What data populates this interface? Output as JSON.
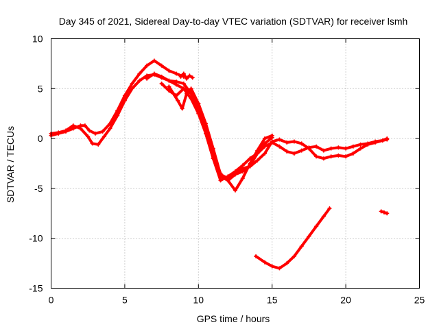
{
  "chart_data": {
    "type": "scatter",
    "title": "Day 345 of 2021, Sidereal Day-to-day VTEC variation (SDTVAR) for receiver lsmh",
    "xlabel": "GPS time / hours",
    "ylabel": "SDTVAR / TECUs",
    "xlim": [
      0,
      25
    ],
    "ylim": [
      -15,
      10
    ],
    "xticks": [
      0,
      5,
      10,
      15,
      20,
      25
    ],
    "yticks": [
      -15,
      -10,
      -5,
      0,
      5,
      10
    ],
    "grid": true,
    "colors": {
      "series": "#ff0000",
      "grid": "#a0a0a0",
      "axis": "#000000"
    },
    "series": [
      {
        "name": "track-1",
        "x": [
          0.0,
          0.5,
          1.0,
          1.5,
          2.0,
          2.3,
          2.6,
          3.0,
          3.5,
          4.0,
          4.5,
          5.0,
          5.5,
          6.0,
          6.5,
          7.0,
          7.5,
          8.0,
          8.5,
          9.0
        ],
        "y": [
          0.3,
          0.5,
          0.7,
          1.0,
          1.3,
          1.3,
          0.8,
          0.5,
          0.7,
          1.5,
          2.8,
          4.3,
          5.5,
          6.5,
          7.3,
          7.8,
          7.3,
          6.8,
          6.5,
          6.2
        ]
      },
      {
        "name": "track-2",
        "x": [
          0.0,
          0.5,
          1.0,
          1.5,
          2.0,
          2.5,
          2.8,
          3.2,
          3.6,
          4.0,
          4.5,
          5.0,
          5.5,
          6.0,
          6.5,
          7.0,
          7.5,
          8.0,
          8.5,
          9.0,
          9.5,
          10.0,
          10.5,
          11.0,
          11.5
        ],
        "y": [
          0.5,
          0.6,
          0.8,
          1.3,
          1.0,
          0.2,
          -0.5,
          -0.6,
          0.2,
          1.0,
          2.3,
          3.8,
          5.0,
          5.8,
          6.3,
          6.4,
          6.1,
          5.8,
          5.7,
          5.5,
          4.5,
          3.0,
          0.8,
          -1.5,
          -3.5
        ]
      },
      {
        "name": "track-3",
        "x": [
          6.5,
          7.0,
          7.5,
          8.0,
          8.5,
          9.0,
          9.5,
          10.0,
          10.5,
          11.0,
          11.5,
          12.0,
          12.5,
          13.0,
          13.5,
          14.0,
          14.5,
          15.0,
          15.5,
          16.0,
          16.5,
          17.0,
          17.5,
          18.0,
          18.5,
          19.0,
          19.5,
          20.0,
          20.5,
          21.0,
          21.5,
          22.0,
          22.5,
          22.8
        ],
        "y": [
          6.0,
          6.5,
          6.2,
          5.8,
          5.4,
          5.0,
          4.0,
          2.5,
          0.5,
          -2.0,
          -4.2,
          -3.8,
          -3.3,
          -2.7,
          -2.0,
          -1.5,
          -0.8,
          -0.4,
          -0.8,
          -1.3,
          -1.5,
          -1.2,
          -0.9,
          -0.8,
          -1.2,
          -1.0,
          -0.9,
          -1.0,
          -0.8,
          -0.6,
          -0.5,
          -0.3,
          -0.2,
          0.0
        ]
      },
      {
        "name": "track-4",
        "x": [
          7.5,
          8.0,
          8.5,
          9.0,
          9.5,
          10.0,
          10.5,
          11.0,
          11.5,
          12.0,
          12.5,
          13.0,
          13.5,
          14.0,
          14.5,
          15.0,
          15.5,
          16.0,
          16.5,
          17.0,
          17.5,
          18.0,
          18.5,
          19.0,
          19.5,
          20.0,
          20.5,
          21.0,
          21.5,
          22.0,
          22.5,
          22.8
        ],
        "y": [
          5.5,
          4.8,
          4.3,
          5.0,
          4.8,
          3.5,
          1.5,
          -1.0,
          -3.6,
          -4.0,
          -3.5,
          -3.0,
          -2.8,
          -2.2,
          -1.5,
          -0.3,
          -0.1,
          -0.4,
          -0.3,
          -0.5,
          -1.0,
          -1.8,
          -2.0,
          -1.8,
          -1.7,
          -1.8,
          -1.5,
          -1.0,
          -0.6,
          -0.4,
          -0.2,
          -0.1
        ]
      },
      {
        "name": "track-5",
        "x": [
          8.0,
          8.3,
          8.6,
          8.9,
          9.2,
          9.5,
          10.0,
          10.5,
          11.0,
          11.5,
          12.0,
          12.5,
          13.0,
          13.5,
          14.0,
          14.5,
          15.0
        ],
        "y": [
          5.2,
          4.5,
          3.8,
          3.0,
          4.5,
          5.0,
          3.5,
          1.0,
          -1.5,
          -3.6,
          -4.2,
          -3.6,
          -3.3,
          -2.7,
          -1.5,
          -0.5,
          0.1
        ]
      },
      {
        "name": "track-6",
        "x": [
          8.8,
          9.0,
          9.2,
          9.4,
          9.6
        ],
        "y": [
          6.2,
          6.5,
          6.0,
          6.3,
          6.1
        ]
      },
      {
        "name": "track-7",
        "x": [
          9.5,
          10.0,
          10.5,
          11.0,
          11.5,
          12.0,
          12.5,
          13.0,
          13.5,
          14.0,
          14.5,
          15.0
        ],
        "y": [
          4.5,
          3.0,
          0.5,
          -2.0,
          -3.8,
          -4.2,
          -5.2,
          -4.0,
          -2.5,
          -1.2,
          0.0,
          0.3
        ]
      },
      {
        "name": "track-8",
        "x": [
          13.9,
          14.5,
          15.0,
          15.5,
          16.0,
          16.5,
          17.0,
          17.5,
          18.0,
          18.5,
          18.9
        ],
        "y": [
          -11.8,
          -12.4,
          -12.8,
          -13.0,
          -12.5,
          -11.8,
          -10.8,
          -9.8,
          -8.8,
          -7.8,
          -7.0
        ]
      },
      {
        "name": "track-9",
        "x": [
          22.4,
          22.6,
          22.8
        ],
        "y": [
          -7.3,
          -7.4,
          -7.5
        ]
      }
    ]
  }
}
